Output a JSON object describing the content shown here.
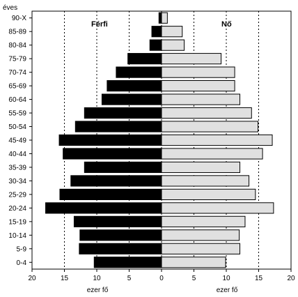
{
  "chart_data": {
    "type": "bar",
    "orientation": "horizontal-pyramid",
    "y_axis_title": "éves",
    "categories": [
      "90-X",
      "85-89",
      "80-84",
      "75-79",
      "70-74",
      "65-69",
      "60-64",
      "55-59",
      "50-54",
      "45-49",
      "40-44",
      "35-39",
      "30-34",
      "25-29",
      "20-24",
      "15-19",
      "10-14",
      "5-9",
      "0-4"
    ],
    "series": [
      {
        "name": "Férfi",
        "side": "left",
        "color": "#000000",
        "values": [
          0.4,
          1.5,
          1.8,
          5.2,
          7.0,
          8.4,
          9.2,
          11.9,
          13.3,
          15.8,
          15.2,
          11.9,
          14.0,
          15.7,
          17.9,
          13.5,
          12.6,
          12.7,
          10.4
        ]
      },
      {
        "name": "Nő",
        "side": "right",
        "color": "#e0e0e0",
        "values": [
          0.9,
          3.2,
          3.5,
          9.2,
          11.3,
          11.3,
          12.1,
          13.9,
          14.9,
          17.1,
          15.6,
          12.1,
          13.5,
          14.5,
          17.3,
          12.9,
          12.0,
          12.1,
          9.9
        ]
      }
    ],
    "xlim": [
      -20,
      20
    ],
    "x_ticks": [
      20,
      15,
      10,
      5,
      0,
      5,
      10,
      15,
      20
    ],
    "x_tick_values": [
      -20,
      -15,
      -10,
      -5,
      0,
      5,
      10,
      15,
      20
    ],
    "x_unit_left": "ezer fő",
    "x_unit_right": "ezer fő",
    "grid_x": true,
    "grid_style": "dotted"
  }
}
